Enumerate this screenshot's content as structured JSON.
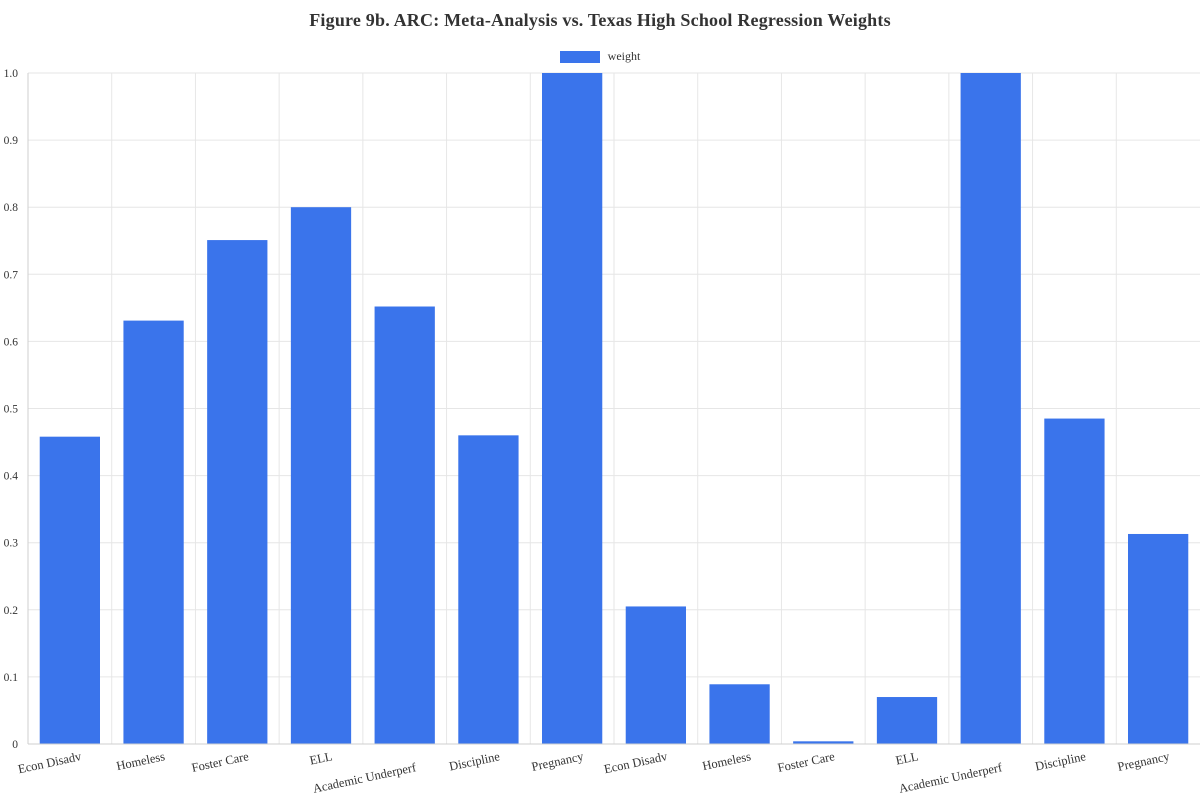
{
  "chart_data": {
    "type": "bar",
    "title": "Figure 9b. ARC: Meta-Analysis vs. Texas High School Regression Weights",
    "xlabel": "",
    "ylabel": "",
    "ylim": [
      0,
      1
    ],
    "yticks": [
      "0",
      "0.1",
      "0.2",
      "0.3",
      "0.4",
      "0.5",
      "0.6",
      "0.7",
      "0.8",
      "0.9",
      "1.0"
    ],
    "grid": true,
    "legend_position": "top-center",
    "categories": [
      "Econ Disadv",
      "Homeless",
      "Foster Care",
      "ELL",
      "Academic Underperf",
      "Discipline",
      "Pregnancy",
      "Econ Disadv",
      "Homeless",
      "Foster Care",
      "ELL",
      "Academic Underperf",
      "Discipline",
      "Pregnancy"
    ],
    "series": [
      {
        "name": "weight",
        "color": "#3a74eb",
        "values": [
          0.458,
          0.631,
          0.751,
          0.8,
          0.652,
          0.46,
          1.0,
          0.205,
          0.089,
          0.004,
          0.07,
          1.0,
          0.485,
          0.313
        ]
      }
    ]
  }
}
